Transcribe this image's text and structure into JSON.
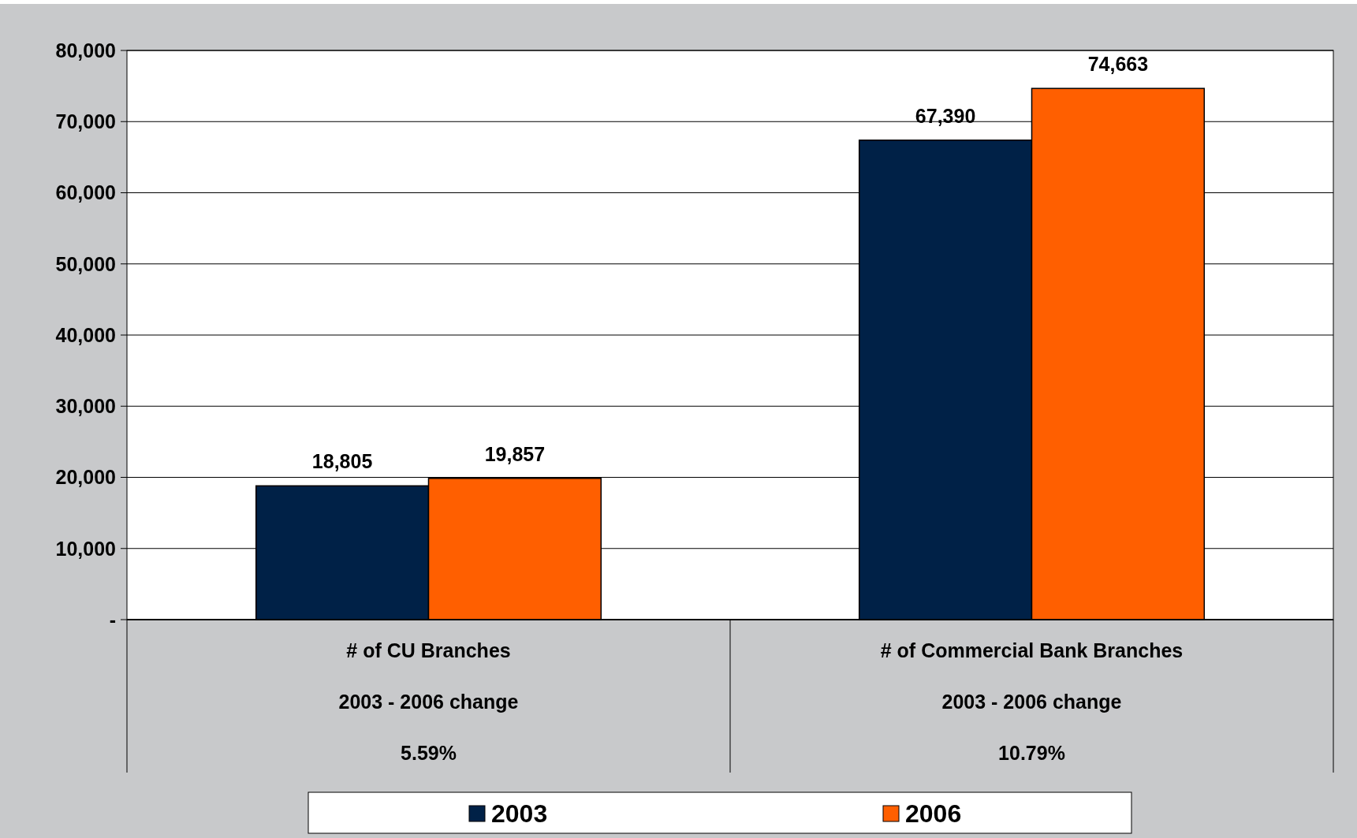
{
  "chart_data": {
    "type": "bar",
    "categories": [
      "# of CU Branches\n2003 - 2006 change\n5.59%",
      "# of Commercial Bank Branches\n2003 - 2006 change\n10.79%"
    ],
    "series": [
      {
        "name": "2003",
        "color": "#002147",
        "values": [
          18805,
          67390
        ]
      },
      {
        "name": "2006",
        "color": "#ff5f00",
        "values": [
          19857,
          74663
        ]
      }
    ],
    "ylim": [
      0,
      80000
    ],
    "yticks": [
      {
        "value": 0,
        "label": "-"
      },
      {
        "value": 10000,
        "label": "10,000"
      },
      {
        "value": 20000,
        "label": "20,000"
      },
      {
        "value": 30000,
        "label": "30,000"
      },
      {
        "value": 40000,
        "label": "40,000"
      },
      {
        "value": 50000,
        "label": "50,000"
      },
      {
        "value": 60000,
        "label": "60,000"
      },
      {
        "value": 70000,
        "label": "70,000"
      },
      {
        "value": 80000,
        "label": "80,000"
      }
    ],
    "value_labels": [
      [
        "18,805",
        "67,390"
      ],
      [
        "19,857",
        "74,663"
      ]
    ],
    "grid": "y",
    "legend": "bottom"
  }
}
